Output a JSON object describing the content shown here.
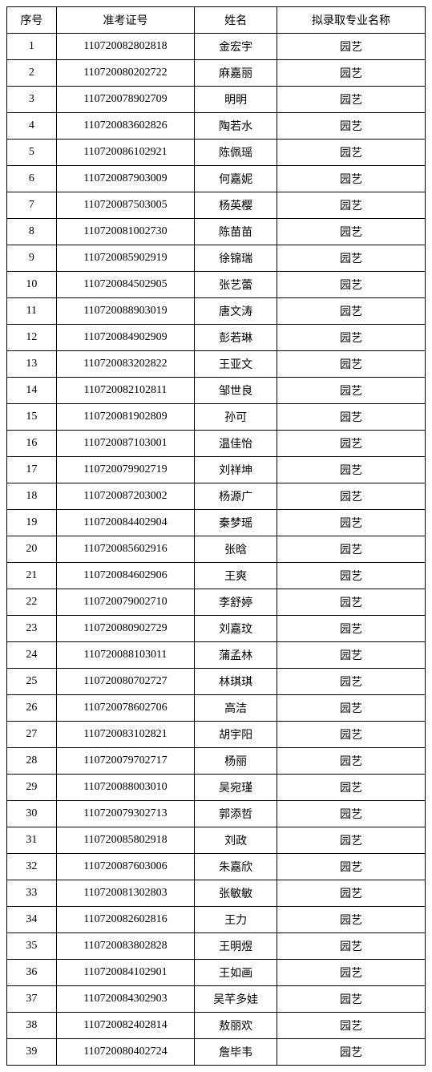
{
  "table": {
    "columns": [
      "序号",
      "准考证号",
      "姓名",
      "拟录取专业名称"
    ],
    "col_widths": [
      "60px",
      "168px",
      "100px",
      "180px"
    ],
    "rows": [
      [
        "1",
        "110720082802818",
        "金宏宇",
        "园艺"
      ],
      [
        "2",
        "110720080202722",
        "麻嘉丽",
        "园艺"
      ],
      [
        "3",
        "110720078902709",
        "明明",
        "园艺"
      ],
      [
        "4",
        "110720083602826",
        "陶若水",
        "园艺"
      ],
      [
        "5",
        "110720086102921",
        "陈佩瑶",
        "园艺"
      ],
      [
        "6",
        "110720087903009",
        "何嘉妮",
        "园艺"
      ],
      [
        "7",
        "110720087503005",
        "杨英樱",
        "园艺"
      ],
      [
        "8",
        "110720081002730",
        "陈苗苗",
        "园艺"
      ],
      [
        "9",
        "110720085902919",
        "徐锦瑞",
        "园艺"
      ],
      [
        "10",
        "110720084502905",
        "张艺蕾",
        "园艺"
      ],
      [
        "11",
        "110720088903019",
        "唐文涛",
        "园艺"
      ],
      [
        "12",
        "110720084902909",
        "彭若琳",
        "园艺"
      ],
      [
        "13",
        "110720083202822",
        "王亚文",
        "园艺"
      ],
      [
        "14",
        "110720082102811",
        "邹世良",
        "园艺"
      ],
      [
        "15",
        "110720081902809",
        "孙可",
        "园艺"
      ],
      [
        "16",
        "110720087103001",
        "温佳怡",
        "园艺"
      ],
      [
        "17",
        "110720079902719",
        "刘祥坤",
        "园艺"
      ],
      [
        "18",
        "110720087203002",
        "杨源广",
        "园艺"
      ],
      [
        "19",
        "110720084402904",
        "秦梦瑶",
        "园艺"
      ],
      [
        "20",
        "110720085602916",
        "张晗",
        "园艺"
      ],
      [
        "21",
        "110720084602906",
        "王爽",
        "园艺"
      ],
      [
        "22",
        "110720079002710",
        "李舒婷",
        "园艺"
      ],
      [
        "23",
        "110720080902729",
        "刘嘉玟",
        "园艺"
      ],
      [
        "24",
        "110720088103011",
        "蒲孟林",
        "园艺"
      ],
      [
        "25",
        "110720080702727",
        "林琪琪",
        "园艺"
      ],
      [
        "26",
        "110720078602706",
        "高洁",
        "园艺"
      ],
      [
        "27",
        "110720083102821",
        "胡宇阳",
        "园艺"
      ],
      [
        "28",
        "110720079702717",
        "杨丽",
        "园艺"
      ],
      [
        "29",
        "110720088003010",
        "吴宛瑾",
        "园艺"
      ],
      [
        "30",
        "110720079302713",
        "郭添哲",
        "园艺"
      ],
      [
        "31",
        "110720085802918",
        "刘政",
        "园艺"
      ],
      [
        "32",
        "110720087603006",
        "朱嘉欣",
        "园艺"
      ],
      [
        "33",
        "110720081302803",
        "张敏敏",
        "园艺"
      ],
      [
        "34",
        "110720082602816",
        "王力",
        "园艺"
      ],
      [
        "35",
        "110720083802828",
        "王明煜",
        "园艺"
      ],
      [
        "36",
        "110720084102901",
        "王如画",
        "园艺"
      ],
      [
        "37",
        "110720084302903",
        "吴芊多娃",
        "园艺"
      ],
      [
        "38",
        "110720082402814",
        "敖丽欢",
        "园艺"
      ],
      [
        "39",
        "110720080402724",
        "詹毕韦",
        "园艺"
      ]
    ],
    "border_color": "#000000",
    "background_color": "#ffffff",
    "font_size": 14,
    "text_color": "#000000"
  }
}
